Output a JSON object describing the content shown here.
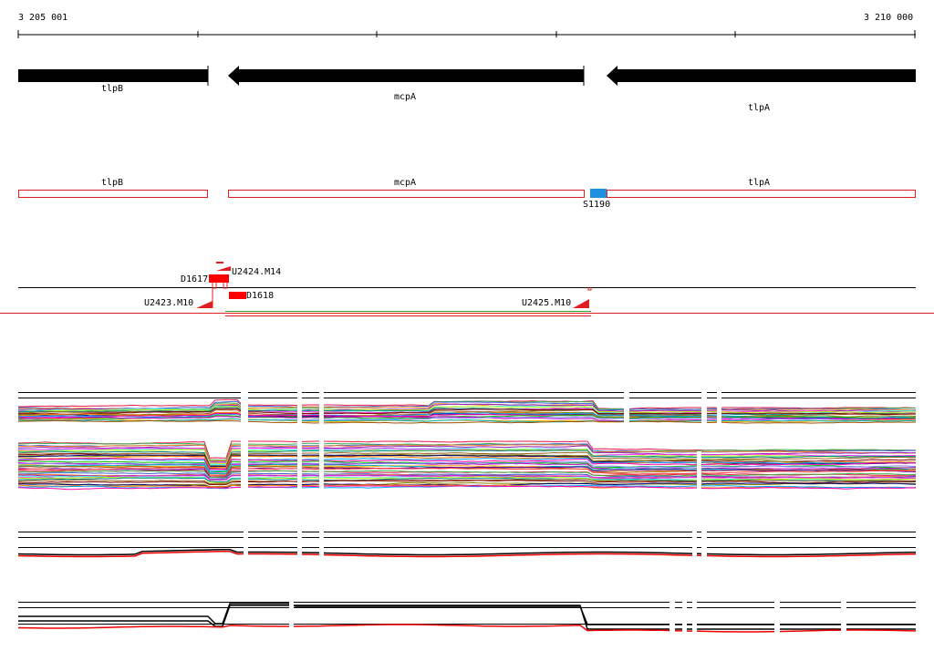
{
  "ruler": {
    "start_label": "3 205 001",
    "end_label": "3 210 000"
  },
  "genes": [
    {
      "id": "gene-tlpB",
      "name": "tlpB"
    },
    {
      "id": "gene-mcpA",
      "name": "mcpA"
    },
    {
      "id": "gene-tlpA",
      "name": "tlpA"
    }
  ],
  "cds": [
    {
      "id": "cds-tlpB",
      "name": "tlpB"
    },
    {
      "id": "cds-mcpA",
      "name": "mcpA"
    },
    {
      "id": "cds-tlpA",
      "name": "tlpA"
    }
  ],
  "feature": {
    "name": "S1190",
    "color": "#1e90e0"
  },
  "transcripts": {
    "d1617": "D1617",
    "d1618": "D1618",
    "u2424": "U2424.M14",
    "u2423": "U2423.M10",
    "u2425": "U2425.M10"
  },
  "colors": {
    "feature_red": "#ff0000",
    "gene_black": "#000000",
    "utr_green": "#2aa12a",
    "s1190_blue": "#1e90e0"
  }
}
